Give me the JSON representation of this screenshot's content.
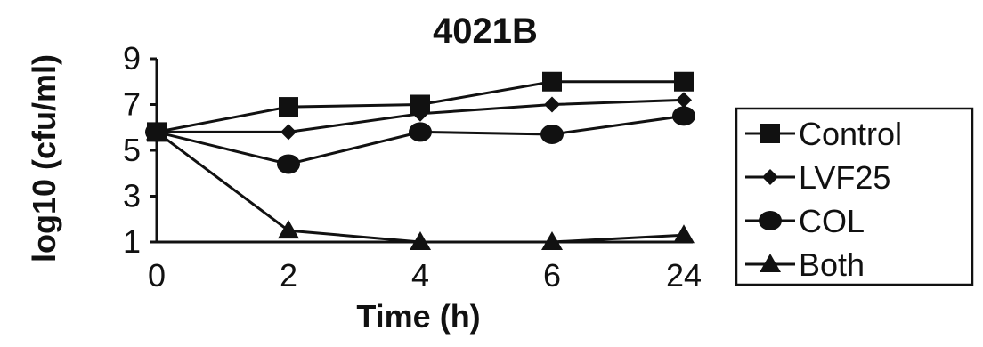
{
  "chart_data": {
    "type": "line",
    "title": "4021B",
    "xlabel": "Time (h)",
    "ylabel": "log10 (cfu/ml)",
    "categories": [
      "0",
      "2",
      "4",
      "6",
      "24"
    ],
    "yticks": [
      "1",
      "3",
      "5",
      "7",
      "9"
    ],
    "ylim": [
      1,
      9
    ],
    "grid": false,
    "legend_position": "right",
    "series": [
      {
        "name": "Control",
        "marker": "square",
        "values": [
          5.8,
          6.9,
          7.0,
          8.0,
          8.0
        ]
      },
      {
        "name": "LVF25",
        "marker": "diamond",
        "values": [
          5.8,
          5.8,
          6.6,
          7.0,
          7.2
        ]
      },
      {
        "name": "COL",
        "marker": "circle",
        "values": [
          5.8,
          4.4,
          5.8,
          5.7,
          6.5
        ]
      },
      {
        "name": "Both",
        "marker": "triangle",
        "values": [
          5.8,
          1.5,
          1.0,
          1.0,
          1.3
        ]
      }
    ]
  }
}
